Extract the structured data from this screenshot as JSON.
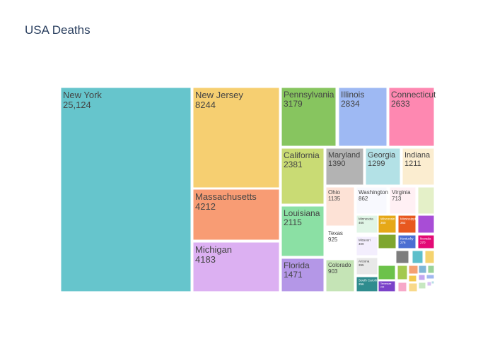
{
  "chart_data": {
    "type": "treemap",
    "title": "USA Deaths",
    "items": [
      {
        "name": "New York",
        "value": 25124,
        "value_label": "25,124",
        "color": "#66c5cc"
      },
      {
        "name": "New Jersey",
        "value": 8244,
        "value_label": "8244",
        "color": "#f6cf71"
      },
      {
        "name": "Massachusetts",
        "value": 4212,
        "value_label": "4212",
        "color": "#f89c74"
      },
      {
        "name": "Michigan",
        "value": 4183,
        "value_label": "4183",
        "color": "#dcb0f2"
      },
      {
        "name": "Pennsylvania",
        "value": 3179,
        "value_label": "3179",
        "color": "#87c55f"
      },
      {
        "name": "Illinois",
        "value": 2834,
        "value_label": "2834",
        "color": "#9eb9f3"
      },
      {
        "name": "Connecticut",
        "value": 2633,
        "value_label": "2633",
        "color": "#fe88b1"
      },
      {
        "name": "California",
        "value": 2381,
        "value_label": "2381",
        "color": "#c9db74"
      },
      {
        "name": "Louisiana",
        "value": 2115,
        "value_label": "2115",
        "color": "#8be0a4"
      },
      {
        "name": "Florida",
        "value": 1471,
        "value_label": "1471",
        "color": "#b497e7"
      },
      {
        "name": "Maryland",
        "value": 1390,
        "value_label": "1390",
        "color": "#b3b3b3"
      },
      {
        "name": "Georgia",
        "value": 1299,
        "value_label": "1299",
        "color": "#b3e1e6"
      },
      {
        "name": "Indiana",
        "value": 1211,
        "value_label": "1211",
        "color": "#fbedd0"
      },
      {
        "name": "Ohio",
        "value": 1135,
        "value_label": "1135",
        "color": "#fde2d6"
      },
      {
        "name": "Texas",
        "value": 925,
        "value_label": "925",
        "color": "#ffffff"
      },
      {
        "name": "Colorado",
        "value": 903,
        "value_label": "903",
        "color": "#c5e4b6"
      },
      {
        "name": "Washington",
        "value": 862,
        "value_label": "862",
        "color": "#f8f9fe"
      },
      {
        "name": "Virginia",
        "value": 713,
        "value_label": "713",
        "color": "#fff0f4"
      },
      {
        "name": "Minnesota",
        "value": 466,
        "value_label": "466",
        "color": "#e0f5e6"
      },
      {
        "name": "Missouri",
        "value": 409,
        "value_label": "409",
        "color": "#f3eefd"
      },
      {
        "name": "Arizona",
        "value": 395,
        "value_label": "395",
        "color": "#e8e8e8"
      },
      {
        "name": "Wisconsin",
        "value": 360,
        "value_label": "360",
        "color": "#e6a818"
      },
      {
        "name": "Mississippi",
        "value": 362,
        "value_label": "362",
        "color": "#e8581e"
      },
      {
        "name": "Nevada",
        "value": 270,
        "value_label": "270",
        "color": "#e30a76"
      },
      {
        "name": "Kentucky",
        "value": 276,
        "value_label": "276",
        "color": "#4b6ed2"
      },
      {
        "name": "South Carolina",
        "value": 256,
        "value_label": "256",
        "color": "#2f8c8e"
      },
      {
        "name": "Tennessee",
        "value": 226,
        "value_label": "226",
        "color": "#7b42c9"
      },
      {
        "name": "",
        "value": 250,
        "value_label": "",
        "color": "#e4f0c8"
      },
      {
        "name": "",
        "value": 240,
        "value_label": "",
        "color": "#a84dd6"
      },
      {
        "name": "",
        "value": 230,
        "value_label": "",
        "color": "#7fa62f"
      },
      {
        "name": "",
        "value": 210,
        "value_label": "",
        "color": "#7d7d7d"
      },
      {
        "name": "",
        "value": 200,
        "value_label": "",
        "color": "#5dbfcb"
      },
      {
        "name": "",
        "value": 190,
        "value_label": "",
        "color": "#f5d36e"
      },
      {
        "name": "",
        "value": 180,
        "value_label": "",
        "color": "#6cc24a"
      },
      {
        "name": "",
        "value": 170,
        "value_label": "",
        "color": "#a3c94f"
      },
      {
        "name": "",
        "value": 160,
        "value_label": "",
        "color": "#f4a072"
      },
      {
        "name": "",
        "value": 150,
        "value_label": "",
        "color": "#7fb6d6"
      },
      {
        "name": "",
        "value": 140,
        "value_label": "",
        "color": "#9bd39a"
      },
      {
        "name": "",
        "value": 130,
        "value_label": "",
        "color": "#f2c94c"
      },
      {
        "name": "",
        "value": 120,
        "value_label": "",
        "color": "#c3a6f0"
      },
      {
        "name": "",
        "value": 110,
        "value_label": "",
        "color": "#a1b8f0"
      },
      {
        "name": "",
        "value": 100,
        "value_label": "",
        "color": "#f7a8c8"
      },
      {
        "name": "",
        "value": 90,
        "value_label": "",
        "color": "#f8d98a"
      },
      {
        "name": "",
        "value": 80,
        "value_label": "",
        "color": "#c7e7c1"
      },
      {
        "name": "",
        "value": 70,
        "value_label": "",
        "color": "#d8c2f5"
      },
      {
        "name": "",
        "value": 60,
        "value_label": "",
        "color": "#b8dfe6"
      }
    ]
  }
}
